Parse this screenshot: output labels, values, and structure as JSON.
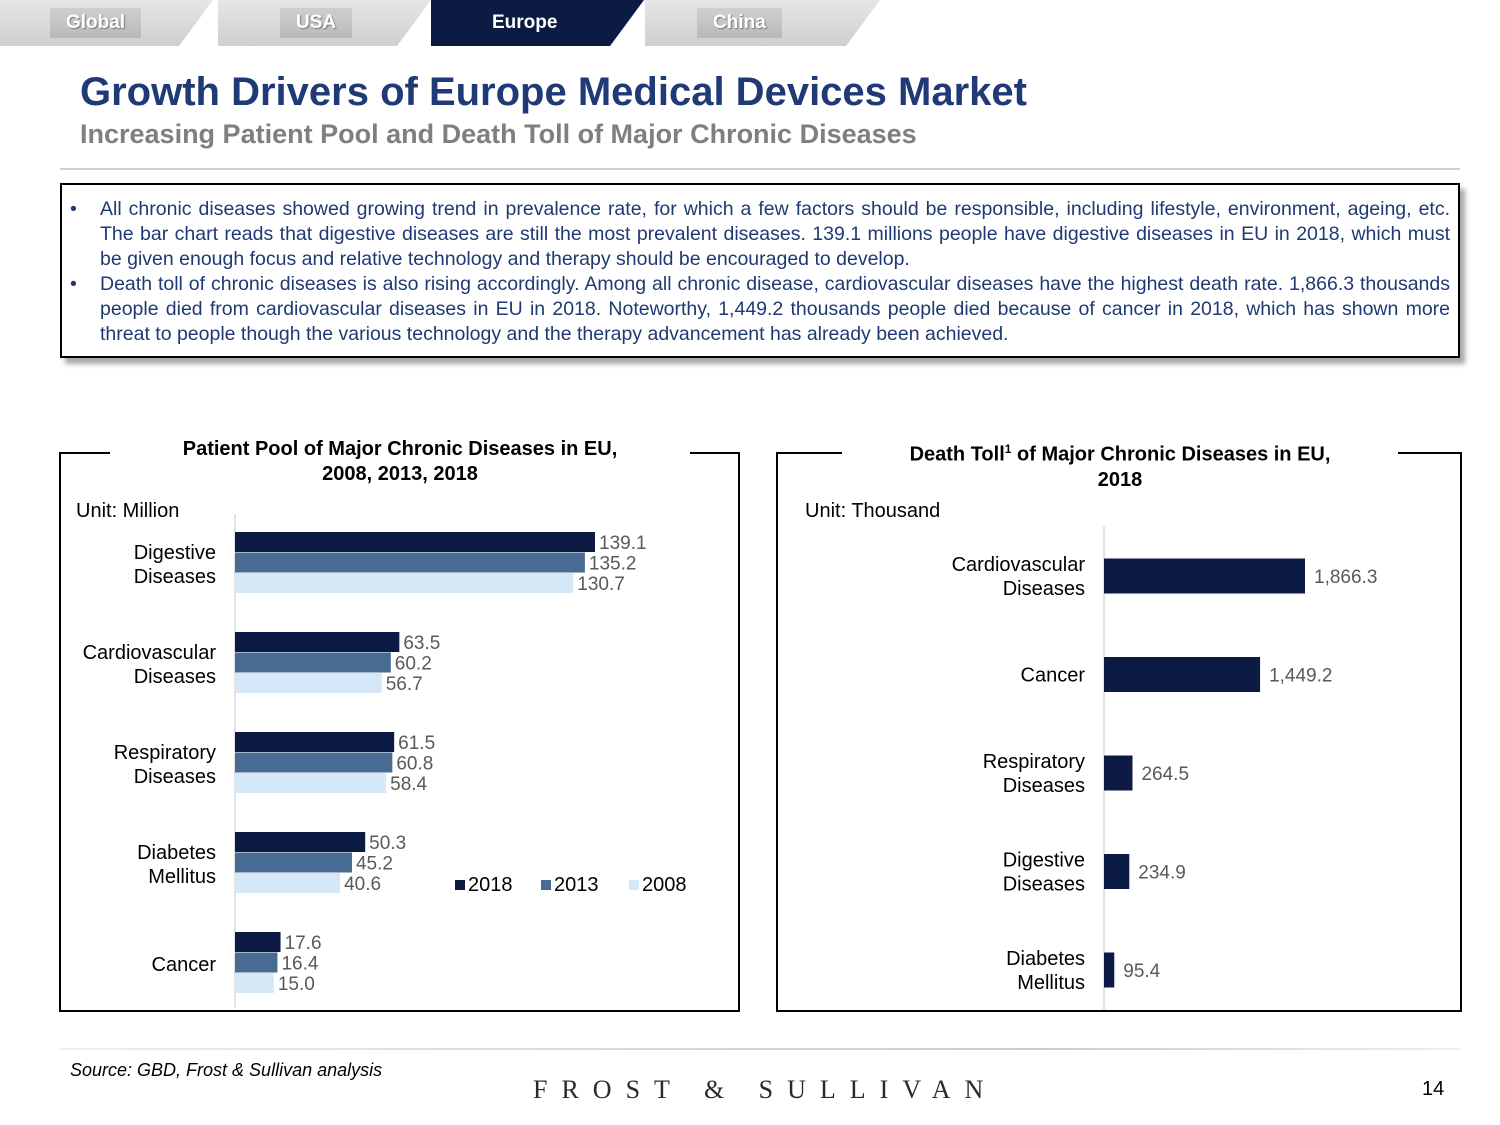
{
  "tabs": [
    {
      "label": "Global",
      "active": false
    },
    {
      "label": "USA",
      "active": false
    },
    {
      "label": "Europe",
      "active": true
    },
    {
      "label": "China",
      "active": false
    }
  ],
  "title": "Growth Drivers of Europe Medical Devices Market",
  "subtitle": "Increasing Patient Pool and Death Toll of Major Chronic Diseases",
  "bullets": [
    "All chronic diseases showed growing trend in prevalence rate, for which a few factors should be responsible, including lifestyle, environment, ageing, etc. The bar chart reads that digestive diseases are still the most prevalent diseases. 139.1 millions people have digestive diseases in EU in 2018, which must be given enough focus and relative technology and therapy should be encouraged to develop.",
    "Death toll of chronic diseases is also rising accordingly. Among all chronic disease, cardiovascular diseases have the highest death rate. 1,866.3 thousands people died from cardiovascular diseases in EU in 2018. Noteworthy, 1,449.2 thousands people died because of cancer in 2018, which has shown more threat to people though the various technology and the therapy advancement has already been achieved."
  ],
  "chart_data": [
    {
      "type": "bar",
      "orientation": "horizontal",
      "title": "Patient Pool of Major Chronic Diseases in EU, 2008, 2013, 2018",
      "title_lines": [
        "Patient Pool of Major Chronic Diseases in EU,",
        "2008, 2013, 2018"
      ],
      "unit": "Unit: Million",
      "categories": [
        [
          "Digestive",
          "Diseases"
        ],
        [
          "Cardiovascular",
          "Diseases"
        ],
        [
          "Respiratory",
          "Diseases"
        ],
        [
          "Diabetes",
          "Mellitus"
        ],
        [
          "Cancer"
        ]
      ],
      "series": [
        {
          "name": "2018",
          "color": "#0c1a44",
          "values": [
            139.1,
            63.5,
            61.5,
            50.3,
            17.6
          ],
          "labels": [
            "139.1",
            "63.5",
            "61.5",
            "50.3",
            "17.6"
          ]
        },
        {
          "name": "2013",
          "color": "#486b94",
          "values": [
            135.2,
            60.2,
            60.8,
            45.2,
            16.4
          ],
          "labels": [
            "135.2",
            "60.2",
            "60.8",
            "45.2",
            "16.4"
          ]
        },
        {
          "name": "2008",
          "color": "#d6e8f8",
          "values": [
            130.7,
            56.7,
            58.4,
            40.6,
            15.0
          ],
          "labels": [
            "130.7",
            "56.7",
            "58.4",
            "40.6",
            "15.0"
          ]
        }
      ],
      "legend": "inside-right"
    },
    {
      "type": "bar",
      "orientation": "horizontal",
      "title": "Death Toll1 of Major Chronic Diseases in EU, 2018",
      "title_main": "Death Toll",
      "title_sup": "1",
      "title_rest": " of Major Chronic Diseases in EU,",
      "title_line2": "2018",
      "unit": "Unit: Thousand",
      "categories": [
        [
          "Cardiovascular",
          "Diseases"
        ],
        [
          "Cancer"
        ],
        [
          "Respiratory",
          "Diseases"
        ],
        [
          "Digestive",
          "Diseases"
        ],
        [
          "Diabetes",
          "Mellitus"
        ]
      ],
      "series": [
        {
          "name": "2018",
          "color": "#0c1a44",
          "values": [
            1866.3,
            1449.2,
            264.5,
            234.9,
            95.4
          ],
          "labels": [
            "1,866.3",
            "1,449.2",
            "264.5",
            "234.9",
            "95.4"
          ]
        }
      ]
    }
  ],
  "source": "Source: GBD, Frost & Sullivan analysis",
  "brand": "FROST & SULLIVAN",
  "page_number": "14"
}
